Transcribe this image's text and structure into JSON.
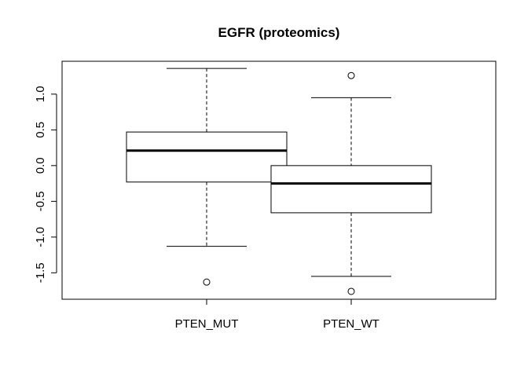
{
  "chart_data": {
    "type": "boxplot",
    "title": "EGFR (proteomics)",
    "xlabel": "",
    "ylabel": "",
    "ylim": [
      -1.87,
      1.46
    ],
    "yticks": [
      1.0,
      0.5,
      0.0,
      -0.5,
      -1.0,
      -1.5
    ],
    "ytick_labels": [
      "1.0",
      "0.5",
      "0.0",
      "-0.5",
      "-1.0",
      "-1.5"
    ],
    "categories": [
      "PTEN_MUT",
      "PTEN_WT"
    ],
    "boxes": [
      {
        "category": "PTEN_MUT",
        "whisker_low": -1.13,
        "q1": -0.23,
        "median": 0.21,
        "q3": 0.47,
        "whisker_high": 1.36,
        "outliers": [
          -1.63
        ]
      },
      {
        "category": "PTEN_WT",
        "whisker_low": -1.55,
        "q1": -0.66,
        "median": -0.25,
        "q3": 0.0,
        "whisker_high": 0.95,
        "outliers": [
          1.26,
          -1.76
        ]
      }
    ],
    "grid": false,
    "legend": "none"
  }
}
